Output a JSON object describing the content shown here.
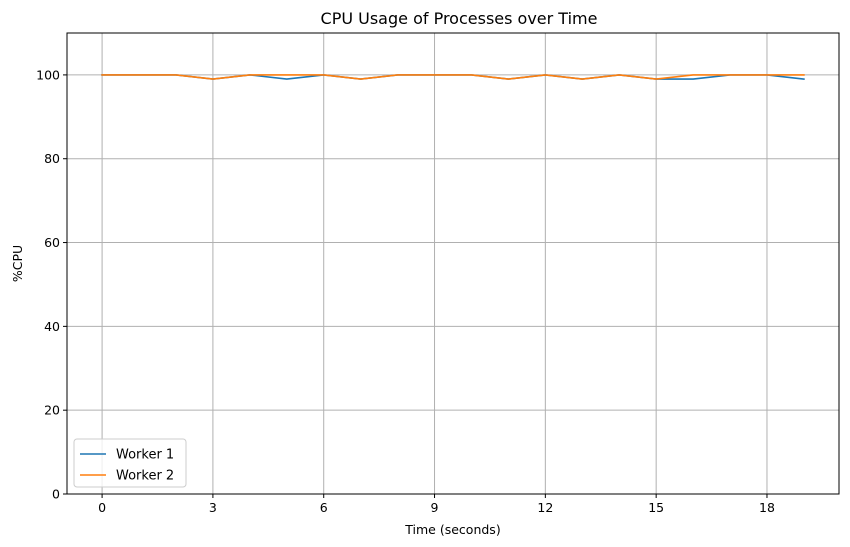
{
  "chart_data": {
    "type": "line",
    "title": "CPU Usage of Processes over Time",
    "xlabel": "Time (seconds)",
    "ylabel": "%CPU",
    "x": [
      0,
      1,
      2,
      3,
      4,
      5,
      6,
      7,
      8,
      9,
      10,
      11,
      12,
      13,
      14,
      15,
      16,
      17,
      18,
      19
    ],
    "xlim": [
      -0.95,
      19.95
    ],
    "ylim": [
      0,
      110
    ],
    "xticks": [
      0,
      3,
      6,
      9,
      12,
      15,
      18
    ],
    "yticks": [
      0,
      20,
      40,
      60,
      80,
      100
    ],
    "grid": true,
    "legend_position": "lower-left",
    "series": [
      {
        "name": "Worker 1",
        "color": "#1f77b4",
        "values": [
          100,
          100,
          100,
          99,
          100,
          99,
          100,
          99,
          100,
          100,
          100,
          99,
          100,
          99,
          100,
          99,
          99,
          100,
          100,
          99
        ]
      },
      {
        "name": "Worker 2",
        "color": "#ff7f0e",
        "values": [
          100,
          100,
          100,
          99,
          100,
          100,
          100,
          99,
          100,
          100,
          100,
          99,
          100,
          99,
          100,
          99,
          100,
          100,
          100,
          100
        ]
      }
    ]
  }
}
